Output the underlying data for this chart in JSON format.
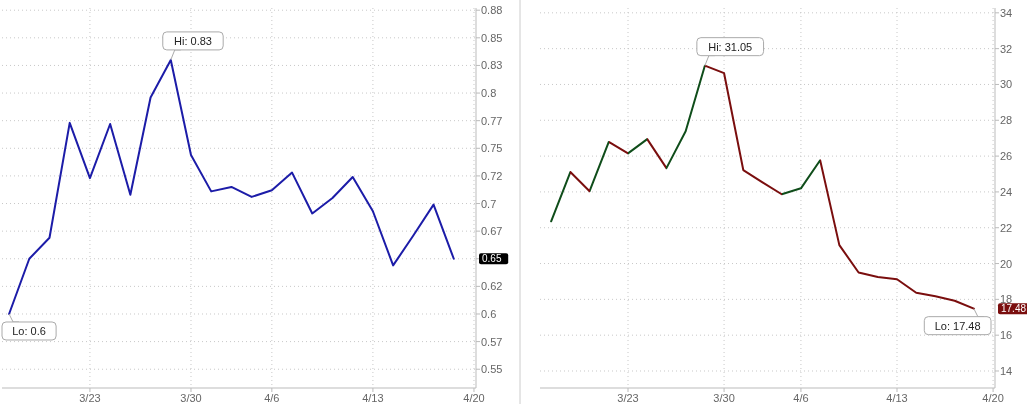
{
  "chart_data": [
    {
      "type": "line",
      "categories": [
        null,
        null,
        null,
        null,
        "3/23",
        null,
        null,
        null,
        null,
        "3/30",
        null,
        null,
        null,
        "4/6",
        null,
        null,
        null,
        null,
        "4/13",
        null,
        null,
        null,
        null,
        "4/20"
      ],
      "series": [
        {
          "color": "#1c1ca8",
          "values": [
            0.6,
            0.65,
            0.669,
            0.773,
            0.723,
            0.772,
            0.708,
            0.796,
            0.83,
            0.744,
            0.711,
            0.715,
            0.706,
            0.712,
            0.728,
            0.691,
            0.705,
            0.724,
            0.693,
            0.644,
            0.671,
            0.699,
            0.65,
            null
          ]
        }
      ],
      "ylim": [
        0.533,
        0.877
      ],
      "yticks": [
        0.55,
        {
          "value": 0.575,
          "label": "0.57"
        },
        0.6,
        {
          "value": 0.625,
          "label": "0.62"
        },
        {
          "value": 0.65,
          "label": null
        },
        {
          "value": 0.675,
          "label": "0.67"
        },
        0.7,
        {
          "value": 0.725,
          "label": "0.72"
        },
        0.75,
        {
          "value": 0.775,
          "label": "0.77"
        },
        0.8,
        {
          "value": 0.825,
          "label": "0.83"
        },
        0.85,
        {
          "value": 0.875,
          "label": "0.88"
        }
      ],
      "grid": true,
      "line_style": "solid",
      "annotations": [
        "Hi: 0.83",
        "Lo: 0.6",
        "0.65"
      ]
    },
    {
      "type": "line",
      "categories": [
        null,
        null,
        null,
        null,
        "3/23",
        null,
        null,
        null,
        null,
        "3/30",
        null,
        null,
        null,
        "4/6",
        null,
        null,
        null,
        null,
        "4/13",
        null,
        null,
        null,
        null,
        "4/20"
      ],
      "series": [
        {
          "color": "#7a0e0e",
          "colors": [
            "#0f4d1a",
            "#0f4d1a",
            "#7a0e0e",
            "#0f4d1a",
            "#7a0e0e",
            "#0f4d1a",
            "#7a0e0e",
            "#0f4d1a",
            "#0f4d1a",
            "#7a0e0e",
            "#7a0e0e",
            "#7a0e0e",
            "#7a0e0e",
            "#0f4d1a",
            "#0f4d1a",
            "#7a0e0e",
            "#7a0e0e",
            "#7a0e0e",
            "#7a0e0e",
            "#7a0e0e",
            "#7a0e0e",
            "#7a0e0e",
            "#7a0e0e",
            null
          ],
          "values": [
            22.36,
            25.11,
            24.04,
            26.79,
            26.15,
            26.95,
            25.33,
            27.39,
            31.05,
            30.63,
            25.22,
            24.53,
            23.87,
            24.2,
            25.77,
            21.03,
            19.5,
            19.25,
            19.12,
            18.37,
            18.17,
            17.92,
            17.48,
            null
          ]
        }
      ],
      "ylim": [
        13.05,
        34.27
      ],
      "yticks": [
        14,
        16,
        18,
        20,
        22,
        24,
        26,
        28,
        30,
        32,
        34
      ],
      "grid": true,
      "line_style": "solid",
      "annotations": [
        "Hi: 31.05",
        "Lo: 17.48",
        "17.48"
      ]
    }
  ]
}
